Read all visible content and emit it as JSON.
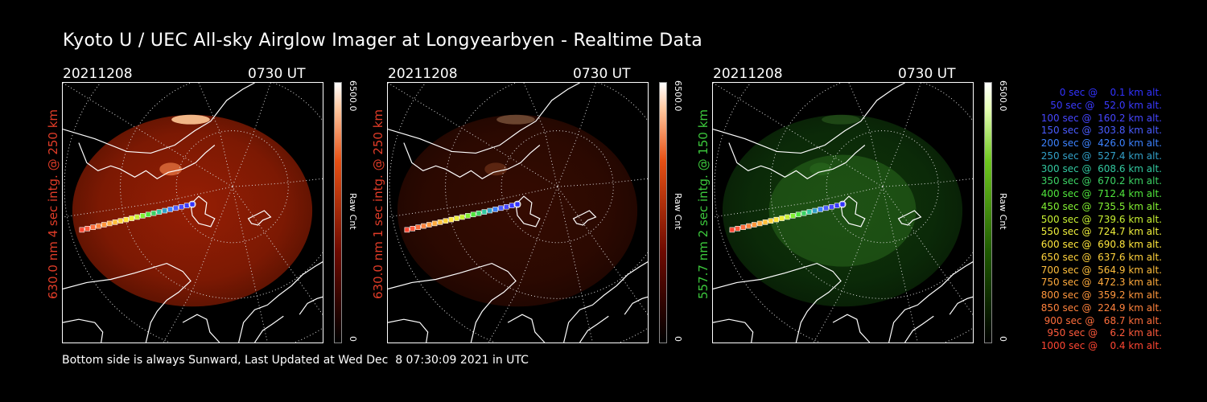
{
  "title": "Kyoto U / UEC All-sky Airglow Imager at Longyearbyen - Realtime Data",
  "footer": "Bottom side is always Sunward, Last Updated at Wed Dec  8 07:30:09 2021 in UTC",
  "panels": [
    {
      "date": "20211208",
      "time": "0730 UT",
      "ylabel": "630.0 nm 4 sec intg. @ 250 km",
      "label_color": "#e03c28",
      "cbar_max": "6500.0",
      "cbar_unit": "Raw Cnt",
      "cbar_min": "0",
      "theme": "red",
      "intensity": 1.0
    },
    {
      "date": "20211208",
      "time": "0730 UT",
      "ylabel": "630.0 nm 1 sec intg. @ 250 km",
      "label_color": "#e03c28",
      "cbar_max": "6500.0",
      "cbar_unit": "Raw Cnt",
      "cbar_min": "0",
      "theme": "red",
      "intensity": 0.35
    },
    {
      "date": "20211208",
      "time": "0730 UT",
      "ylabel": "557.7 nm 2 sec intg. @ 150 km",
      "label_color": "#3cc83c",
      "cbar_max": "6500.0",
      "cbar_unit": "Raw Cnt",
      "cbar_min": "0",
      "theme": "green",
      "intensity": 0.45
    }
  ],
  "legend": [
    {
      "text": "0 sec @    0.1 km alt.",
      "color": "#3232ff"
    },
    {
      "text": "50 sec @   52.0 km alt.",
      "color": "#3a3aff"
    },
    {
      "text": "100 sec @  160.2 km alt.",
      "color": "#4646ff"
    },
    {
      "text": "150 sec @  303.8 km alt.",
      "color": "#4a5cff"
    },
    {
      "text": "200 sec @  426.0 km alt.",
      "color": "#3c82ff"
    },
    {
      "text": "250 sec @  527.4 km alt.",
      "color": "#32a0c8"
    },
    {
      "text": "300 sec @  608.6 km alt.",
      "color": "#32c8a0"
    },
    {
      "text": "350 sec @  670.2 km alt.",
      "color": "#3cd264"
    },
    {
      "text": "400 sec @  712.4 km alt.",
      "color": "#50e63c"
    },
    {
      "text": "450 sec @  735.5 km alt.",
      "color": "#82f032"
    },
    {
      "text": "500 sec @  739.6 km alt.",
      "color": "#c8f032"
    },
    {
      "text": "550 sec @  724.7 km alt.",
      "color": "#f0f03c"
    },
    {
      "text": "600 sec @  690.8 km alt.",
      "color": "#ffe63c"
    },
    {
      "text": "650 sec @  637.6 km alt.",
      "color": "#ffd23c"
    },
    {
      "text": "700 sec @  564.9 km alt.",
      "color": "#ffbe3c"
    },
    {
      "text": "750 sec @  472.3 km alt.",
      "color": "#ffaa3c"
    },
    {
      "text": "800 sec @  359.2 km alt.",
      "color": "#ff963c"
    },
    {
      "text": "850 sec @  224.9 km alt.",
      "color": "#ff823c"
    },
    {
      "text": "900 sec @   68.7 km alt.",
      "color": "#ff6e3c"
    },
    {
      "text": "950 sec @    6.2 km alt.",
      "color": "#ff5a3c"
    },
    {
      "text": "1000 sec @    0.4 km alt.",
      "color": "#ff4632"
    }
  ]
}
